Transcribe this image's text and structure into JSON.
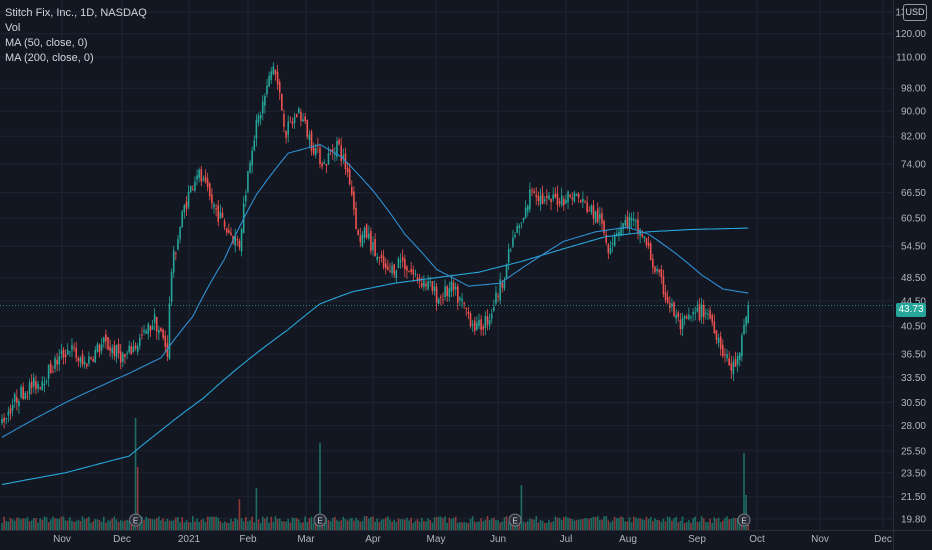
{
  "legend": {
    "title": "Stitch Fix, Inc., 1D, NASDAQ",
    "volume": "Vol",
    "ma50": "MA (50, close, 0)",
    "ma200": "MA (200, close, 0)"
  },
  "currency_label": "USD",
  "last_price_label": "43.73",
  "colors": {
    "background": "#131722",
    "grid": "#1f2433",
    "up": "#26a69a",
    "down": "#ef5350",
    "ma50": "#2f8fd1",
    "ma200": "#28a6d9",
    "axis_text": "#b2b5be",
    "dashed_line": "#26a69a"
  },
  "earnings_marker": "E",
  "chart_data": {
    "type": "candlestick",
    "title": "Stitch Fix, Inc., 1D, NASDAQ",
    "y_scale": "log",
    "y_ticks": [
      19.8,
      21.5,
      23.5,
      25.5,
      28.0,
      30.5,
      33.5,
      36.5,
      40.5,
      44.5,
      48.5,
      54.5,
      60.5,
      66.5,
      74.0,
      82.0,
      90.0,
      98.0,
      110.0,
      120.0,
      130.0
    ],
    "y_tick_labels": [
      "19.80",
      "21.50",
      "23.50",
      "25.50",
      "28.00",
      "30.50",
      "33.50",
      "36.50",
      "40.50",
      "44.50",
      "48.50",
      "54.50",
      "60.50",
      "66.50",
      "74.00",
      "82.00",
      "90.00",
      "98.00",
      "110.00",
      "120.00",
      "130.00"
    ],
    "ylim": [
      19.0,
      136.0
    ],
    "x_month_labels": [
      "Nov",
      "Dec",
      "2021",
      "Feb",
      "Mar",
      "Apr",
      "May",
      "Jun",
      "Jul",
      "Aug",
      "Sep",
      "Oct",
      "Nov",
      "Dec"
    ],
    "last_price": 43.73,
    "price_anchors": [
      {
        "x": 0,
        "y": 28.5
      },
      {
        "x": 8,
        "y": 31.5
      },
      {
        "x": 18,
        "y": 33.0
      },
      {
        "x": 32,
        "y": 37.5
      },
      {
        "x": 38,
        "y": 35.0
      },
      {
        "x": 48,
        "y": 38.0
      },
      {
        "x": 58,
        "y": 36.0
      },
      {
        "x": 68,
        "y": 39.5
      },
      {
        "x": 72,
        "y": 41.5
      },
      {
        "x": 78,
        "y": 37.0
      },
      {
        "x": 80,
        "y": 50.0
      },
      {
        "x": 86,
        "y": 63.0
      },
      {
        "x": 92,
        "y": 72.0
      },
      {
        "x": 98,
        "y": 65.0
      },
      {
        "x": 106,
        "y": 58.0
      },
      {
        "x": 112,
        "y": 55.0
      },
      {
        "x": 118,
        "y": 80.0
      },
      {
        "x": 124,
        "y": 95.0
      },
      {
        "x": 128,
        "y": 107.0
      },
      {
        "x": 134,
        "y": 83.0
      },
      {
        "x": 140,
        "y": 90.0
      },
      {
        "x": 146,
        "y": 80.0
      },
      {
        "x": 152,
        "y": 74.0
      },
      {
        "x": 158,
        "y": 80.0
      },
      {
        "x": 164,
        "y": 70.0
      },
      {
        "x": 168,
        "y": 56.0
      },
      {
        "x": 172,
        "y": 57.0
      },
      {
        "x": 176,
        "y": 53.0
      },
      {
        "x": 182,
        "y": 49.0
      },
      {
        "x": 188,
        "y": 52.0
      },
      {
        "x": 194,
        "y": 49.0
      },
      {
        "x": 200,
        "y": 47.5
      },
      {
        "x": 206,
        "y": 45.0
      },
      {
        "x": 212,
        "y": 46.5
      },
      {
        "x": 218,
        "y": 43.5
      },
      {
        "x": 224,
        "y": 40.0
      },
      {
        "x": 230,
        "y": 42.0
      },
      {
        "x": 236,
        "y": 48.0
      },
      {
        "x": 242,
        "y": 57.0
      },
      {
        "x": 246,
        "y": 60.0
      },
      {
        "x": 250,
        "y": 68.0
      },
      {
        "x": 256,
        "y": 64.0
      },
      {
        "x": 262,
        "y": 65.0
      },
      {
        "x": 270,
        "y": 66.0
      },
      {
        "x": 276,
        "y": 63.0
      },
      {
        "x": 282,
        "y": 60.0
      },
      {
        "x": 286,
        "y": 54.5
      },
      {
        "x": 290,
        "y": 58.0
      },
      {
        "x": 296,
        "y": 60.0
      },
      {
        "x": 302,
        "y": 57.0
      },
      {
        "x": 308,
        "y": 50.0
      },
      {
        "x": 314,
        "y": 44.5
      },
      {
        "x": 320,
        "y": 40.5
      },
      {
        "x": 326,
        "y": 42.0
      },
      {
        "x": 332,
        "y": 43.0
      },
      {
        "x": 336,
        "y": 40.5
      },
      {
        "x": 340,
        "y": 37.0
      },
      {
        "x": 344,
        "y": 34.5
      },
      {
        "x": 348,
        "y": 36.0
      },
      {
        "x": 350,
        "y": 40.5
      },
      {
        "x": 352,
        "y": 43.73
      }
    ],
    "ma50_anchors": [
      {
        "x": 0,
        "y": 26.8
      },
      {
        "x": 30,
        "y": 30.5
      },
      {
        "x": 60,
        "y": 34.0
      },
      {
        "x": 75,
        "y": 36.0
      },
      {
        "x": 90,
        "y": 42.0
      },
      {
        "x": 105,
        "y": 52.0
      },
      {
        "x": 120,
        "y": 66.0
      },
      {
        "x": 135,
        "y": 77.0
      },
      {
        "x": 150,
        "y": 79.5
      },
      {
        "x": 160,
        "y": 76.0
      },
      {
        "x": 175,
        "y": 67.0
      },
      {
        "x": 190,
        "y": 57.0
      },
      {
        "x": 205,
        "y": 50.0
      },
      {
        "x": 220,
        "y": 47.0
      },
      {
        "x": 235,
        "y": 47.5
      },
      {
        "x": 250,
        "y": 51.5
      },
      {
        "x": 265,
        "y": 55.5
      },
      {
        "x": 280,
        "y": 57.5
      },
      {
        "x": 295,
        "y": 58.5
      },
      {
        "x": 305,
        "y": 57.0
      },
      {
        "x": 318,
        "y": 53.0
      },
      {
        "x": 330,
        "y": 49.0
      },
      {
        "x": 340,
        "y": 46.5
      },
      {
        "x": 352,
        "y": 45.8
      }
    ],
    "ma200_anchors": [
      {
        "x": 0,
        "y": 22.5
      },
      {
        "x": 30,
        "y": 23.5
      },
      {
        "x": 60,
        "y": 25.0
      },
      {
        "x": 75,
        "y": 27.5
      },
      {
        "x": 95,
        "y": 31.0
      },
      {
        "x": 115,
        "y": 35.5
      },
      {
        "x": 135,
        "y": 40.0
      },
      {
        "x": 150,
        "y": 44.0
      },
      {
        "x": 165,
        "y": 46.0
      },
      {
        "x": 185,
        "y": 47.5
      },
      {
        "x": 205,
        "y": 48.5
      },
      {
        "x": 225,
        "y": 49.5
      },
      {
        "x": 245,
        "y": 51.5
      },
      {
        "x": 265,
        "y": 54.0
      },
      {
        "x": 285,
        "y": 56.5
      },
      {
        "x": 305,
        "y": 57.5
      },
      {
        "x": 325,
        "y": 58.0
      },
      {
        "x": 352,
        "y": 58.3
      }
    ],
    "volume_spikes": [
      {
        "x": 63,
        "rel": 0.8
      },
      {
        "x": 64,
        "rel": 0.45
      },
      {
        "x": 150,
        "rel": 0.62
      },
      {
        "x": 245,
        "rel": 0.32
      },
      {
        "x": 350,
        "rel": 0.55
      },
      {
        "x": 351,
        "rel": 0.25
      },
      {
        "x": 112,
        "rel": 0.22
      },
      {
        "x": 120,
        "rel": 0.3
      }
    ],
    "earnings_x": [
      63,
      150,
      242,
      350
    ]
  }
}
